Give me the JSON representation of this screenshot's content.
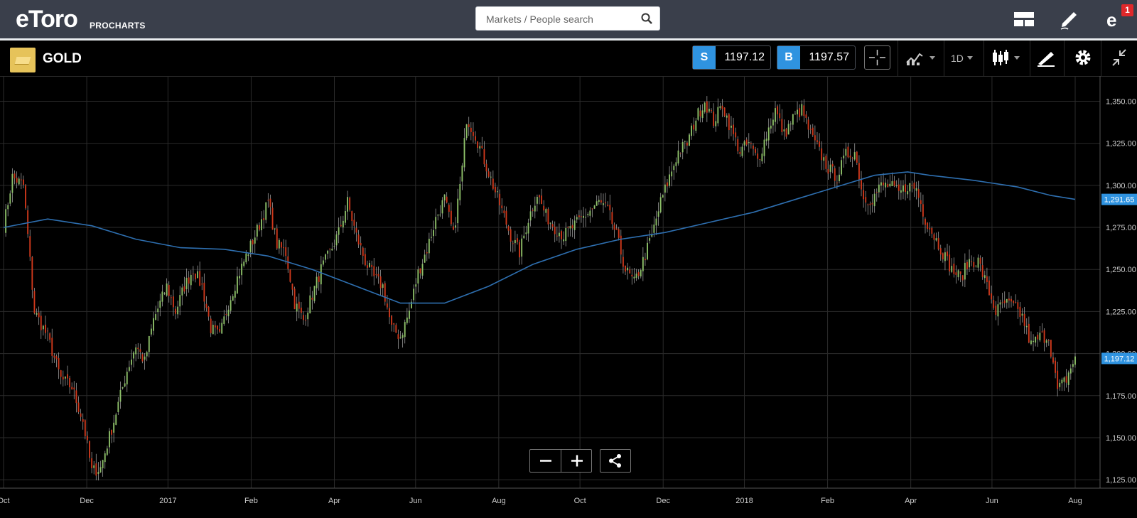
{
  "app": {
    "logo_text": "eToro",
    "logo_sub": "PROCHARTS",
    "search_placeholder": "Markets / People search",
    "notification_count": "1"
  },
  "instrument": {
    "name": "GOLD",
    "sell_label": "S",
    "sell_price": "1197.12",
    "buy_label": "B",
    "buy_price": "1197.57",
    "timeframe": "1D"
  },
  "icons": {
    "search": "search-icon",
    "layout": "layout-icon",
    "edit": "pencil-icon",
    "notifications": "notification-icon",
    "crosshair": "crosshair-icon",
    "indicators": "indicators-icon",
    "chart_type": "candlestick-icon",
    "drawing": "drawing-icon",
    "settings": "gear-icon",
    "collapse": "collapse-icon",
    "zoom_out": "minus-icon",
    "zoom_in": "plus-icon",
    "share": "share-icon"
  },
  "colors": {
    "up_candle": "#8fc26a",
    "down_candle": "#d1391c",
    "moving_average": "#2e6fb0",
    "price_tag": "#2f93e0"
  },
  "chart_data": {
    "type": "candlestick",
    "xlabels": [
      "Oct",
      "Dec",
      "2017",
      "Feb",
      "Apr",
      "Jun",
      "Aug",
      "Oct",
      "Dec",
      "2018",
      "Feb",
      "Apr",
      "Jun",
      "Aug"
    ],
    "ylim": [
      1120,
      1365
    ],
    "yticks": [
      1125,
      1150,
      1175,
      1200,
      1225,
      1250,
      1275,
      1300,
      1325,
      1350
    ],
    "ytick_labels": [
      "1,125.00",
      "1,150.00",
      "1,175.00",
      "1,200.00",
      "1,225.00",
      "1,250.00",
      "1,275.00",
      "1,300.00",
      "1,325.00",
      "1,350.00"
    ],
    "last_price": 1197.12,
    "last_price_label": "1,197.12",
    "ma_last": 1291.65,
    "ma_last_label": "1,291.65",
    "grid": true,
    "close_path": [
      [
        0,
        1275
      ],
      [
        4,
        1305
      ],
      [
        9,
        1300
      ],
      [
        14,
        1225
      ],
      [
        20,
        1210
      ],
      [
        26,
        1185
      ],
      [
        31,
        1180
      ],
      [
        36,
        1160
      ],
      [
        40,
        1130
      ],
      [
        44,
        1132
      ],
      [
        50,
        1160
      ],
      [
        56,
        1190
      ],
      [
        60,
        1205
      ],
      [
        64,
        1195
      ],
      [
        68,
        1220
      ],
      [
        74,
        1240
      ],
      [
        78,
        1225
      ],
      [
        82,
        1240
      ],
      [
        86,
        1250
      ],
      [
        90,
        1240
      ],
      [
        94,
        1215
      ],
      [
        98,
        1210
      ],
      [
        102,
        1230
      ],
      [
        106,
        1245
      ],
      [
        110,
        1258
      ],
      [
        114,
        1270
      ],
      [
        120,
        1290
      ],
      [
        124,
        1265
      ],
      [
        128,
        1260
      ],
      [
        132,
        1230
      ],
      [
        136,
        1220
      ],
      [
        140,
        1235
      ],
      [
        144,
        1250
      ],
      [
        148,
        1260
      ],
      [
        152,
        1272
      ],
      [
        156,
        1290
      ],
      [
        160,
        1270
      ],
      [
        164,
        1255
      ],
      [
        168,
        1245
      ],
      [
        172,
        1240
      ],
      [
        176,
        1215
      ],
      [
        180,
        1210
      ],
      [
        184,
        1225
      ],
      [
        188,
        1248
      ],
      [
        192,
        1262
      ],
      [
        196,
        1280
      ],
      [
        200,
        1292
      ],
      [
        204,
        1270
      ],
      [
        208,
        1310
      ],
      [
        210,
        1340
      ],
      [
        214,
        1330
      ],
      [
        218,
        1315
      ],
      [
        222,
        1300
      ],
      [
        226,
        1285
      ],
      [
        230,
        1270
      ],
      [
        234,
        1260
      ],
      [
        238,
        1280
      ],
      [
        242,
        1295
      ],
      [
        246,
        1282
      ],
      [
        250,
        1275
      ],
      [
        254,
        1270
      ],
      [
        258,
        1275
      ],
      [
        262,
        1280
      ],
      [
        266,
        1285
      ],
      [
        270,
        1290
      ],
      [
        274,
        1285
      ],
      [
        278,
        1270
      ],
      [
        282,
        1250
      ],
      [
        286,
        1242
      ],
      [
        290,
        1255
      ],
      [
        294,
        1270
      ],
      [
        298,
        1290
      ],
      [
        302,
        1305
      ],
      [
        306,
        1320
      ],
      [
        310,
        1325
      ],
      [
        314,
        1340
      ],
      [
        318,
        1350
      ],
      [
        322,
        1338
      ],
      [
        326,
        1348
      ],
      [
        330,
        1333
      ],
      [
        334,
        1320
      ],
      [
        338,
        1325
      ],
      [
        342,
        1315
      ],
      [
        346,
        1330
      ],
      [
        350,
        1345
      ],
      [
        354,
        1330
      ],
      [
        358,
        1340
      ],
      [
        362,
        1345
      ],
      [
        366,
        1330
      ],
      [
        370,
        1320
      ],
      [
        374,
        1310
      ],
      [
        378,
        1305
      ],
      [
        382,
        1318
      ],
      [
        386,
        1320
      ],
      [
        390,
        1292
      ],
      [
        394,
        1292
      ],
      [
        398,
        1300
      ],
      [
        402,
        1300
      ],
      [
        406,
        1295
      ],
      [
        410,
        1300
      ],
      [
        414,
        1298
      ],
      [
        418,
        1280
      ],
      [
        422,
        1270
      ],
      [
        426,
        1260
      ],
      [
        430,
        1250
      ],
      [
        434,
        1245
      ],
      [
        438,
        1255
      ],
      [
        442,
        1255
      ],
      [
        446,
        1240
      ],
      [
        450,
        1225
      ],
      [
        454,
        1230
      ],
      [
        458,
        1228
      ],
      [
        462,
        1222
      ],
      [
        466,
        1205
      ],
      [
        470,
        1210
      ],
      [
        474,
        1210
      ],
      [
        478,
        1178
      ],
      [
        482,
        1185
      ],
      [
        486,
        1198
      ]
    ],
    "ma_path": [
      [
        0,
        1275
      ],
      [
        20,
        1280
      ],
      [
        40,
        1276
      ],
      [
        60,
        1268
      ],
      [
        80,
        1263
      ],
      [
        100,
        1262
      ],
      [
        120,
        1258
      ],
      [
        140,
        1250
      ],
      [
        160,
        1240
      ],
      [
        180,
        1230
      ],
      [
        200,
        1230
      ],
      [
        220,
        1240
      ],
      [
        240,
        1253
      ],
      [
        260,
        1262
      ],
      [
        280,
        1268
      ],
      [
        300,
        1272
      ],
      [
        320,
        1278
      ],
      [
        340,
        1284
      ],
      [
        360,
        1292
      ],
      [
        380,
        1300
      ],
      [
        395,
        1306
      ],
      [
        410,
        1308
      ],
      [
        420,
        1306
      ],
      [
        440,
        1303
      ],
      [
        460,
        1299
      ],
      [
        475,
        1294
      ],
      [
        486,
        1291.65
      ]
    ]
  }
}
